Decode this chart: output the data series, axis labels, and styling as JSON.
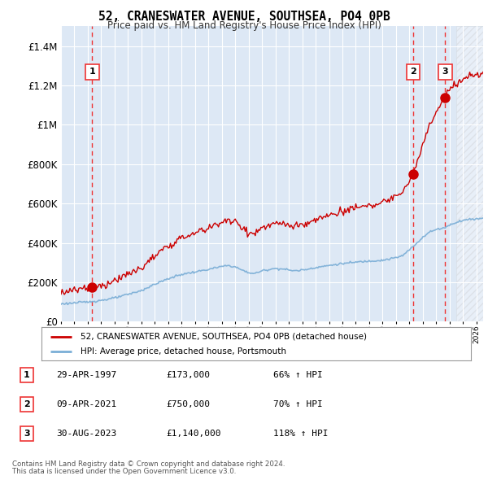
{
  "title": "52, CRANESWATER AVENUE, SOUTHSEA, PO4 0PB",
  "subtitle": "Price paid vs. HM Land Registry's House Price Index (HPI)",
  "legend_line1": "52, CRANESWATER AVENUE, SOUTHSEA, PO4 0PB (detached house)",
  "legend_line2": "HPI: Average price, detached house, Portsmouth",
  "footnote1": "Contains HM Land Registry data © Crown copyright and database right 2024.",
  "footnote2": "This data is licensed under the Open Government Licence v3.0.",
  "transactions": [
    {
      "num": 1,
      "date": "29-APR-1997",
      "price": 173000,
      "pct": "66%",
      "dir": "↑",
      "x": 1997.33
    },
    {
      "num": 2,
      "date": "09-APR-2021",
      "price": 750000,
      "pct": "70%",
      "dir": "↑",
      "x": 2021.28
    },
    {
      "num": 3,
      "date": "30-AUG-2023",
      "price": 1140000,
      "pct": "118%",
      "dir": "↑",
      "x": 2023.67
    }
  ],
  "table_rows": [
    [
      "1",
      "29-APR-1997",
      "£173,000",
      "66% ↑ HPI"
    ],
    [
      "2",
      "09-APR-2021",
      "£750,000",
      "70% ↑ HPI"
    ],
    [
      "3",
      "30-AUG-2023",
      "£1,140,000",
      "118% ↑ HPI"
    ]
  ],
  "ylim": [
    0,
    1500000
  ],
  "xlim": [
    1995,
    2026.5
  ],
  "yticks": [
    0,
    200000,
    400000,
    600000,
    800000,
    1000000,
    1200000,
    1400000
  ],
  "ytick_labels": [
    "£0",
    "£200K",
    "£400K",
    "£600K",
    "£800K",
    "£1M",
    "£1.2M",
    "£1.4M"
  ],
  "hpi_color": "#7aaed6",
  "price_color": "#cc0000",
  "dashed_color": "#ee3333",
  "bg_plot": "#dde8f5",
  "bg_fig": "#ffffff",
  "grid_color": "#ffffff",
  "hatch_start": 2024.5
}
